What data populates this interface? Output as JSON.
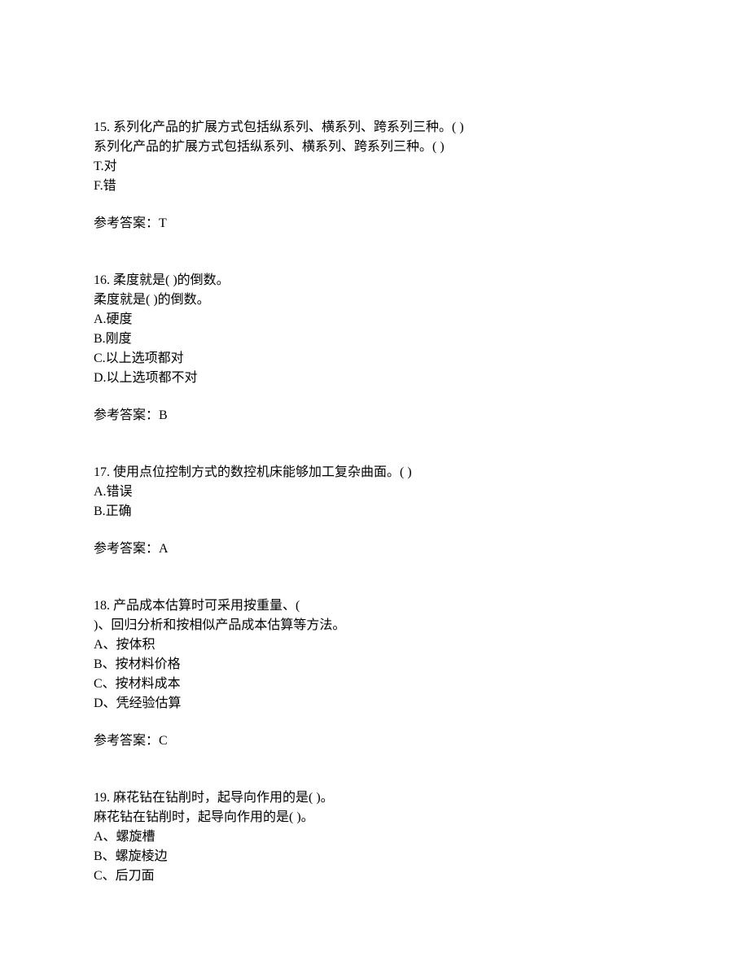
{
  "questions": [
    {
      "number": "15.",
      "title": "系列化产品的扩展方式包括纵系列、横系列、跨系列三种。(   )",
      "repeat": "系列化产品的扩展方式包括纵系列、横系列、跨系列三种。(   )",
      "options": [
        "T.对",
        "F.错"
      ],
      "answer_label": "参考答案：",
      "answer_value": "T"
    },
    {
      "number": "16.",
      "title": "柔度就是(   )的倒数。",
      "repeat": "柔度就是(   )的倒数。",
      "options": [
        "A.硬度",
        "B.刚度",
        "C.以上选项都对",
        "D.以上选项都不对"
      ],
      "answer_label": "参考答案：",
      "answer_value": "B"
    },
    {
      "number": "17.",
      "title": "使用点位控制方式的数控机床能够加工复杂曲面。(   )",
      "repeat": "",
      "options": [
        "A.错误",
        "B.正确"
      ],
      "answer_label": "参考答案：",
      "answer_value": "A"
    },
    {
      "number": "18.",
      "title": "产品成本估算时可采用按重量、(",
      "repeat": ")、回归分析和按相似产品成本估算等方法。",
      "options": [
        "A、按体积",
        "B、按材料价格",
        "C、按材料成本",
        "D、凭经验估算"
      ],
      "answer_label": "参考答案：",
      "answer_value": "C"
    },
    {
      "number": "19.",
      "title": "麻花钻在钻削时，起导向作用的是(   )。",
      "repeat": "麻花钻在钻削时，起导向作用的是(   )。",
      "options": [
        "A、螺旋槽",
        "B、螺旋棱边",
        "C、后刀面"
      ],
      "answer_label": "",
      "answer_value": ""
    }
  ]
}
